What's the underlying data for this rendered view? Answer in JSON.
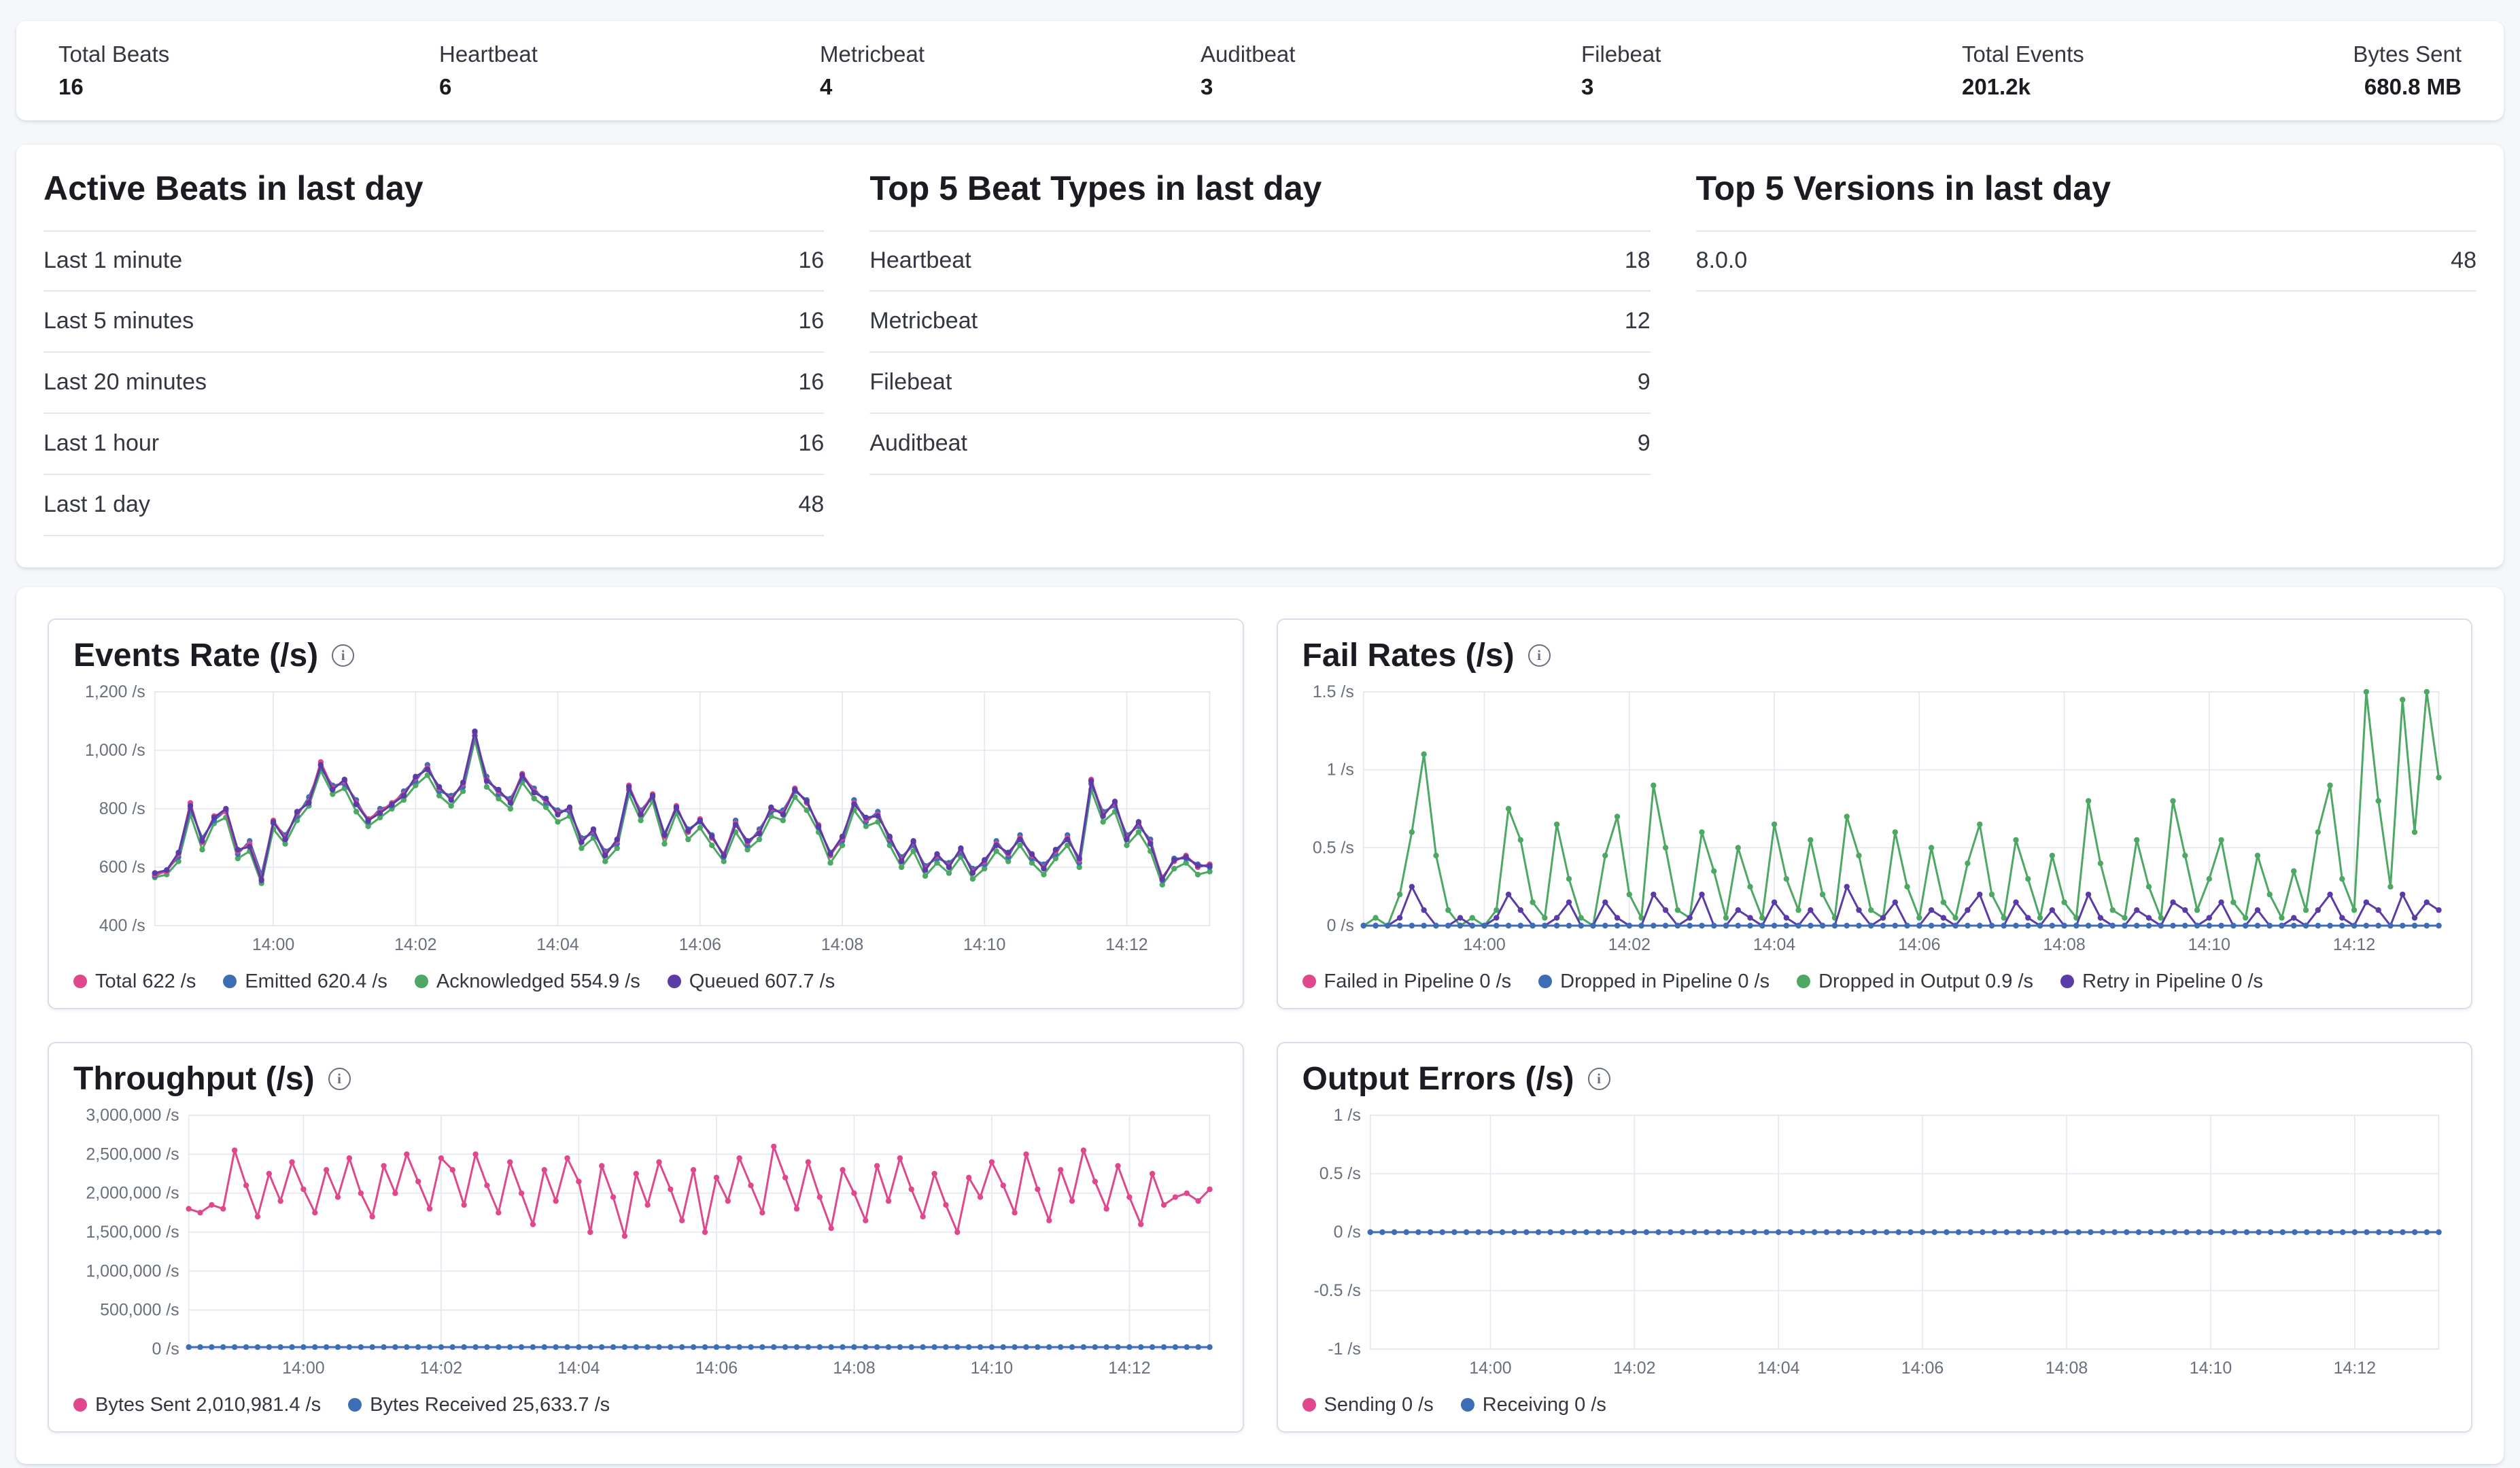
{
  "stats_bar": {
    "items": [
      {
        "label": "Total Beats",
        "value": "16"
      },
      {
        "label": "Heartbeat",
        "value": "6"
      },
      {
        "label": "Metricbeat",
        "value": "4"
      },
      {
        "label": "Auditbeat",
        "value": "3"
      },
      {
        "label": "Filebeat",
        "value": "3"
      },
      {
        "label": "Total Events",
        "value": "201.2k"
      },
      {
        "label": "Bytes Sent",
        "value": "680.8 MB"
      }
    ]
  },
  "summary_tables": [
    {
      "title": "Active Beats in last day",
      "rows": [
        {
          "label": "Last 1 minute",
          "value": "16"
        },
        {
          "label": "Last 5 minutes",
          "value": "16"
        },
        {
          "label": "Last 20 minutes",
          "value": "16"
        },
        {
          "label": "Last 1 hour",
          "value": "16"
        },
        {
          "label": "Last 1 day",
          "value": "48"
        }
      ]
    },
    {
      "title": "Top 5 Beat Types in last day",
      "rows": [
        {
          "label": "Heartbeat",
          "value": "18"
        },
        {
          "label": "Metricbeat",
          "value": "12"
        },
        {
          "label": "Filebeat",
          "value": "9"
        },
        {
          "label": "Auditbeat",
          "value": "9"
        }
      ]
    },
    {
      "title": "Top 5 Versions in last day",
      "rows": [
        {
          "label": "8.0.0",
          "value": "48"
        }
      ]
    }
  ],
  "colors": {
    "pink": "#E0488D",
    "blue": "#3D6EB5",
    "green": "#4CA862",
    "purple": "#5B3BA5",
    "grid": "#E3E7EF",
    "axis_text": "#69707D"
  },
  "chart_data": [
    {
      "type": "line",
      "title": "Events Rate (/s)",
      "point_count": 90,
      "ylim": [
        400,
        1200
      ],
      "mleft": 120,
      "draw_order": [
        2,
        1,
        0,
        3
      ],
      "y_ticks": [
        {
          "label": "1,200 /s",
          "value": 1200
        },
        {
          "label": "1,000 /s",
          "value": 1000
        },
        {
          "label": "800 /s",
          "value": 800
        },
        {
          "label": "600 /s",
          "value": 600
        },
        {
          "label": "400 /s",
          "value": 400
        }
      ],
      "x_ticks": [
        {
          "label": "14:00",
          "index": 10
        },
        {
          "label": "14:02",
          "index": 22
        },
        {
          "label": "14:04",
          "index": 34
        },
        {
          "label": "14:06",
          "index": 46
        },
        {
          "label": "14:08",
          "index": 58
        },
        {
          "label": "14:10",
          "index": 70
        },
        {
          "label": "14:12",
          "index": 82
        }
      ],
      "series": [
        {
          "name": "Total",
          "legend": "Total 622 /s",
          "color": "#E0488D",
          "values": [
            575,
            585,
            645,
            820,
            685,
            775,
            790,
            655,
            680,
            560,
            760,
            700,
            785,
            825,
            960,
            870,
            895,
            820,
            765,
            790,
            820,
            850,
            905,
            940,
            870,
            835,
            885,
            1060,
            900,
            860,
            825,
            920,
            860,
            830,
            785,
            800,
            690,
            725,
            645,
            690,
            880,
            785,
            850,
            705,
            810,
            720,
            765,
            700,
            645,
            750,
            685,
            720,
            800,
            785,
            870,
            820,
            745,
            640,
            700,
            820,
            765,
            780,
            700,
            625,
            685,
            595,
            640,
            605,
            660,
            585,
            620,
            680,
            645,
            700,
            640,
            600,
            655,
            700,
            625,
            900,
            780,
            820,
            700,
            750,
            685,
            565,
            620,
            640,
            600,
            610
          ]
        },
        {
          "name": "Emitted",
          "legend": "Emitted 620.4 /s",
          "color": "#3D6EB5",
          "values": [
            570,
            590,
            635,
            800,
            700,
            760,
            795,
            645,
            690,
            575,
            750,
            710,
            775,
            840,
            940,
            880,
            885,
            830,
            755,
            800,
            810,
            860,
            895,
            950,
            860,
            845,
            875,
            1050,
            910,
            850,
            835,
            905,
            870,
            820,
            795,
            790,
            700,
            715,
            655,
            680,
            865,
            795,
            840,
            715,
            800,
            730,
            755,
            710,
            635,
            760,
            675,
            730,
            790,
            795,
            860,
            830,
            735,
            650,
            690,
            830,
            755,
            790,
            690,
            635,
            675,
            605,
            630,
            615,
            650,
            595,
            610,
            690,
            635,
            710,
            630,
            610,
            645,
            710,
            615,
            885,
            790,
            810,
            710,
            740,
            695,
            555,
            630,
            630,
            610,
            600
          ]
        },
        {
          "name": "Acknowledged",
          "legend": "Acknowledged 554.9 /s",
          "color": "#4CA862",
          "values": [
            565,
            575,
            620,
            780,
            660,
            750,
            770,
            630,
            655,
            545,
            730,
            680,
            760,
            810,
            930,
            850,
            870,
            790,
            740,
            770,
            800,
            830,
            880,
            915,
            845,
            810,
            860,
            1035,
            875,
            835,
            800,
            890,
            835,
            805,
            755,
            775,
            665,
            700,
            620,
            665,
            850,
            760,
            825,
            680,
            785,
            695,
            735,
            675,
            620,
            720,
            660,
            695,
            775,
            760,
            840,
            795,
            720,
            615,
            675,
            795,
            740,
            755,
            675,
            600,
            655,
            570,
            615,
            580,
            635,
            560,
            595,
            655,
            620,
            675,
            615,
            575,
            630,
            675,
            600,
            865,
            755,
            790,
            675,
            720,
            655,
            540,
            595,
            615,
            575,
            585
          ]
        },
        {
          "name": "Queued",
          "legend": "Queued 607.7 /s",
          "color": "#5B3BA5",
          "values": [
            580,
            590,
            650,
            810,
            690,
            770,
            800,
            660,
            670,
            555,
            755,
            695,
            790,
            820,
            950,
            865,
            900,
            815,
            760,
            785,
            815,
            845,
            910,
            935,
            875,
            830,
            890,
            1065,
            895,
            865,
            820,
            915,
            855,
            835,
            780,
            805,
            685,
            730,
            640,
            695,
            875,
            780,
            845,
            710,
            805,
            725,
            760,
            705,
            640,
            745,
            690,
            715,
            805,
            780,
            865,
            825,
            740,
            645,
            705,
            815,
            770,
            775,
            705,
            620,
            690,
            590,
            645,
            600,
            665,
            580,
            625,
            675,
            650,
            695,
            645,
            595,
            660,
            695,
            630,
            895,
            775,
            825,
            695,
            755,
            680,
            560,
            625,
            635,
            605,
            605
          ]
        }
      ]
    },
    {
      "type": "line",
      "title": "Fail Rates (/s)",
      "point_count": 90,
      "ylim": [
        0,
        1.5
      ],
      "mleft": 90,
      "draw_order": [
        0,
        2,
        3,
        1
      ],
      "y_ticks": [
        {
          "label": "1.5 /s",
          "value": 1.5
        },
        {
          "label": "1 /s",
          "value": 1
        },
        {
          "label": "0.5 /s",
          "value": 0.5
        },
        {
          "label": "0 /s",
          "value": 0
        }
      ],
      "x_ticks": [
        {
          "label": "14:00",
          "index": 10
        },
        {
          "label": "14:02",
          "index": 22
        },
        {
          "label": "14:04",
          "index": 34
        },
        {
          "label": "14:06",
          "index": 46
        },
        {
          "label": "14:08",
          "index": 58
        },
        {
          "label": "14:10",
          "index": 70
        },
        {
          "label": "14:12",
          "index": 82
        }
      ],
      "series": [
        {
          "name": "Failed in Pipeline",
          "legend": "Failed in Pipeline 0 /s",
          "color": "#E0488D",
          "flat": 0
        },
        {
          "name": "Dropped in Pipeline",
          "legend": "Dropped in Pipeline 0 /s",
          "color": "#3D6EB5",
          "flat": 0
        },
        {
          "name": "Dropped in Output",
          "legend": "Dropped in Output 0.9 /s",
          "color": "#4CA862",
          "values": [
            0,
            0.05,
            0,
            0.2,
            0.6,
            1.1,
            0.45,
            0.1,
            0,
            0.05,
            0,
            0.1,
            0.75,
            0.55,
            0.15,
            0.05,
            0.65,
            0.3,
            0.05,
            0,
            0.45,
            0.7,
            0.2,
            0.05,
            0.9,
            0.5,
            0.1,
            0.05,
            0.6,
            0.35,
            0.05,
            0.5,
            0.25,
            0.05,
            0.65,
            0.3,
            0.1,
            0.55,
            0.2,
            0.05,
            0.7,
            0.45,
            0.1,
            0.05,
            0.6,
            0.25,
            0.05,
            0.5,
            0.15,
            0.05,
            0.4,
            0.65,
            0.2,
            0.05,
            0.55,
            0.3,
            0.05,
            0.45,
            0.15,
            0.05,
            0.8,
            0.4,
            0.1,
            0.05,
            0.55,
            0.25,
            0.05,
            0.8,
            0.45,
            0.1,
            0.3,
            0.55,
            0.15,
            0.05,
            0.45,
            0.2,
            0.05,
            0.35,
            0.1,
            0.6,
            0.9,
            0.3,
            0.1,
            1.5,
            0.8,
            0.25,
            1.45,
            0.6,
            1.5,
            0.95
          ]
        },
        {
          "name": "Retry in Pipeline",
          "legend": "Retry in Pipeline 0 /s",
          "color": "#5B3BA5",
          "values": [
            0,
            0,
            0,
            0.05,
            0.25,
            0.1,
            0,
            0,
            0.05,
            0,
            0,
            0.05,
            0.2,
            0.1,
            0,
            0,
            0.05,
            0.15,
            0,
            0,
            0.15,
            0.05,
            0,
            0,
            0.2,
            0.1,
            0,
            0.05,
            0.2,
            0,
            0,
            0.1,
            0.05,
            0,
            0.15,
            0.05,
            0,
            0.1,
            0,
            0,
            0.25,
            0.1,
            0,
            0.05,
            0.15,
            0,
            0,
            0.1,
            0.05,
            0,
            0.1,
            0.2,
            0,
            0,
            0.15,
            0.05,
            0,
            0.1,
            0,
            0,
            0.2,
            0.05,
            0,
            0,
            0.1,
            0.05,
            0,
            0.15,
            0.1,
            0,
            0.05,
            0.15,
            0,
            0,
            0.1,
            0,
            0,
            0.05,
            0,
            0.1,
            0.2,
            0.05,
            0,
            0.15,
            0.1,
            0,
            0.2,
            0.05,
            0.15,
            0.1
          ]
        }
      ]
    },
    {
      "type": "line",
      "title": "Throughput (/s)",
      "point_count": 90,
      "ylim": [
        0,
        3000000
      ],
      "mleft": 170,
      "draw_order": [
        0,
        1
      ],
      "y_ticks": [
        {
          "label": "3,000,000 /s",
          "value": 3000000
        },
        {
          "label": "2,500,000 /s",
          "value": 2500000
        },
        {
          "label": "2,000,000 /s",
          "value": 2000000
        },
        {
          "label": "1,500,000 /s",
          "value": 1500000
        },
        {
          "label": "1,000,000 /s",
          "value": 1000000
        },
        {
          "label": "500,000 /s",
          "value": 500000
        },
        {
          "label": "0 /s",
          "value": 0
        }
      ],
      "x_ticks": [
        {
          "label": "14:00",
          "index": 10
        },
        {
          "label": "14:02",
          "index": 22
        },
        {
          "label": "14:04",
          "index": 34
        },
        {
          "label": "14:06",
          "index": 46
        },
        {
          "label": "14:08",
          "index": 58
        },
        {
          "label": "14:10",
          "index": 70
        },
        {
          "label": "14:12",
          "index": 82
        }
      ],
      "series": [
        {
          "name": "Bytes Sent",
          "legend": "Bytes Sent 2,010,981.4 /s",
          "color": "#E0488D",
          "values": [
            1800000,
            1750000,
            1850000,
            1800000,
            2550000,
            2100000,
            1700000,
            2250000,
            1900000,
            2400000,
            2050000,
            1750000,
            2300000,
            1950000,
            2450000,
            2000000,
            1700000,
            2350000,
            2000000,
            2500000,
            2150000,
            1800000,
            2450000,
            2300000,
            1850000,
            2500000,
            2100000,
            1750000,
            2400000,
            2000000,
            1600000,
            2300000,
            1900000,
            2450000,
            2150000,
            1500000,
            2350000,
            1950000,
            1450000,
            2250000,
            1850000,
            2400000,
            2050000,
            1650000,
            2300000,
            1500000,
            2200000,
            1900000,
            2450000,
            2100000,
            1750000,
            2600000,
            2200000,
            1800000,
            2400000,
            1950000,
            1550000,
            2300000,
            2000000,
            1650000,
            2350000,
            1900000,
            2450000,
            2050000,
            1700000,
            2250000,
            1850000,
            1500000,
            2200000,
            1950000,
            2400000,
            2100000,
            1750000,
            2500000,
            2050000,
            1650000,
            2300000,
            1900000,
            2550000,
            2150000,
            1800000,
            2350000,
            1950000,
            1600000,
            2250000,
            1850000,
            1950000,
            2000000,
            1900000,
            2050000
          ]
        },
        {
          "name": "Bytes Received",
          "legend": "Bytes Received 25,633.7 /s",
          "color": "#3D6EB5",
          "flat": 25634
        }
      ]
    },
    {
      "type": "line",
      "title": "Output Errors (/s)",
      "point_count": 90,
      "ylim": [
        -1,
        1
      ],
      "mleft": 100,
      "draw_order": [
        0,
        1
      ],
      "y_ticks": [
        {
          "label": "1 /s",
          "value": 1
        },
        {
          "label": "0.5 /s",
          "value": 0.5
        },
        {
          "label": "0 /s",
          "value": 0
        },
        {
          "label": "-0.5 /s",
          "value": -0.5
        },
        {
          "label": "-1 /s",
          "value": -1
        }
      ],
      "x_ticks": [
        {
          "label": "14:00",
          "index": 10
        },
        {
          "label": "14:02",
          "index": 22
        },
        {
          "label": "14:04",
          "index": 34
        },
        {
          "label": "14:06",
          "index": 46
        },
        {
          "label": "14:08",
          "index": 58
        },
        {
          "label": "14:10",
          "index": 70
        },
        {
          "label": "14:12",
          "index": 82
        }
      ],
      "series": [
        {
          "name": "Sending",
          "legend": "Sending 0 /s",
          "color": "#E0488D",
          "flat": 0
        },
        {
          "name": "Receiving",
          "legend": "Receiving 0 /s",
          "color": "#3D6EB5",
          "flat": 0
        }
      ]
    }
  ]
}
